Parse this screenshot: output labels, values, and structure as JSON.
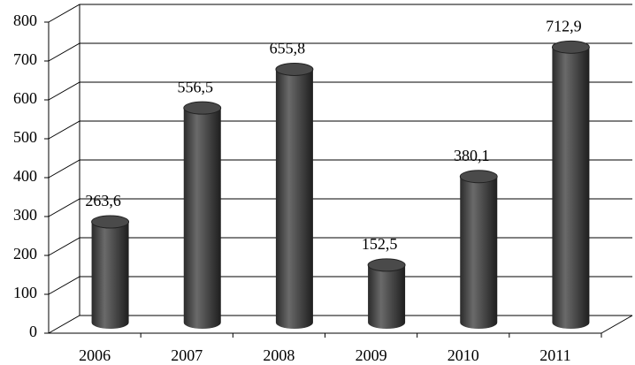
{
  "chart_data": {
    "type": "bar3d",
    "categories": [
      "2006",
      "2007",
      "2008",
      "2009",
      "2010",
      "2011"
    ],
    "values": [
      263.6,
      556.5,
      655.8,
      152.5,
      380.1,
      712.9
    ],
    "value_labels": [
      "263,6",
      "556,5",
      "655,8",
      "152,5",
      "380,1",
      "712,9"
    ],
    "color": "#3a3a3a",
    "ylim": [
      0,
      800
    ],
    "yticks": [
      0,
      100,
      200,
      300,
      400,
      500,
      600,
      700,
      800
    ],
    "grid": true
  }
}
